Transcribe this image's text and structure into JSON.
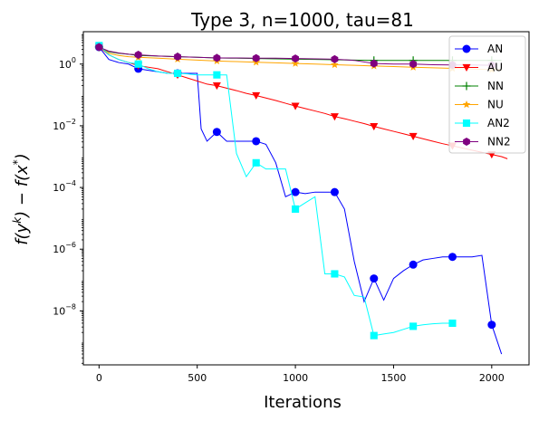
{
  "chart_data": {
    "type": "line",
    "title": "Type 3, n=1000, tau=81",
    "xlabel": "Iterations",
    "ylabel": "f(y^k) − f(x*)",
    "ylabel_parts": {
      "f1": "f(y",
      "sup1": "k",
      "mid": ") − f(x",
      "sup2": "*",
      "end": ")"
    },
    "xlim": [
      -80,
      2190
    ],
    "ylim_log10": [
      -9.75,
      1.05
    ],
    "yscale": "log",
    "xticks": [
      0,
      500,
      1000,
      1500,
      2000
    ],
    "xtick_labels": [
      "0",
      "500",
      "1000",
      "1500",
      "2000"
    ],
    "yticks_exp": [
      0,
      -2,
      -4,
      -6,
      -8
    ],
    "ytick_base": "10",
    "ytick_exp_labels": [
      "0",
      "−2",
      "−4",
      "−6",
      "−8"
    ],
    "legend_placement": "top-right",
    "series": [
      {
        "name": "AN",
        "color": "#0000ff",
        "marker": "circle",
        "x": [
          0,
          50,
          100,
          150,
          200,
          250,
          300,
          350,
          400,
          450,
          500,
          520,
          550,
          600,
          650,
          700,
          750,
          800,
          850,
          900,
          950,
          1000,
          1050,
          1100,
          1150,
          1200,
          1250,
          1300,
          1350,
          1400,
          1450,
          1500,
          1550,
          1600,
          1650,
          1700,
          1750,
          1800,
          1850,
          1900,
          1950,
          2000,
          2050
        ],
        "logy": [
          0.55,
          0.15,
          0.05,
          0.0,
          -0.15,
          -0.2,
          -0.25,
          -0.3,
          -0.3,
          -0.3,
          -0.3,
          -2.1,
          -2.5,
          -2.2,
          -2.5,
          -2.5,
          -2.5,
          -2.5,
          -2.6,
          -3.2,
          -4.3,
          -4.15,
          -4.2,
          -4.15,
          -4.15,
          -4.15,
          -4.7,
          -6.4,
          -7.7,
          -6.95,
          -7.65,
          -6.95,
          -6.7,
          -6.5,
          -6.35,
          -6.3,
          -6.25,
          -6.25,
          -6.25,
          -6.25,
          -6.2,
          -8.45,
          -9.4
        ],
        "markers": [
          0,
          4,
          8,
          13,
          17,
          21,
          25,
          29,
          33,
          37,
          41
        ]
      },
      {
        "name": "AU",
        "color": "#ff0000",
        "marker": "triangle-down",
        "x": [
          0,
          50,
          100,
          150,
          200,
          250,
          300,
          350,
          400,
          450,
          500,
          550,
          600,
          650,
          700,
          750,
          800,
          850,
          900,
          950,
          1000,
          1050,
          1100,
          1150,
          1200,
          1250,
          1300,
          1350,
          1400,
          1450,
          1500,
          1550,
          1600,
          1650,
          1700,
          1750,
          1800,
          1850,
          1900,
          1950,
          2000,
          2050,
          2080
        ],
        "logy": [
          0.55,
          0.3,
          0.15,
          0.05,
          -0.05,
          -0.1,
          -0.15,
          -0.25,
          -0.35,
          -0.45,
          -0.55,
          -0.65,
          -0.7,
          -0.78,
          -0.86,
          -0.95,
          -1.02,
          -1.1,
          -1.18,
          -1.27,
          -1.36,
          -1.44,
          -1.52,
          -1.6,
          -1.7,
          -1.77,
          -1.85,
          -1.93,
          -2.02,
          -2.1,
          -2.18,
          -2.26,
          -2.34,
          -2.42,
          -2.5,
          -2.58,
          -2.65,
          -2.72,
          -2.79,
          -2.86,
          -2.93,
          -3.0,
          -3.07
        ],
        "markers": [
          0,
          4,
          8,
          12,
          16,
          20,
          24,
          28,
          32,
          36,
          40
        ]
      },
      {
        "name": "NN",
        "color": "#008000",
        "marker": "plus",
        "x": [
          0,
          50,
          100,
          150,
          200,
          300,
          400,
          500,
          600,
          700,
          800,
          900,
          1000,
          1100,
          1200,
          1300,
          1400,
          1500,
          1600,
          1700,
          1800,
          1900,
          2000,
          2050
        ],
        "logy": [
          0.55,
          0.4,
          0.35,
          0.32,
          0.28,
          0.26,
          0.24,
          0.22,
          0.2,
          0.19,
          0.18,
          0.17,
          0.16,
          0.15,
          0.14,
          0.13,
          0.12,
          0.12,
          0.12,
          0.12,
          0.12,
          0.12,
          0.12,
          0.12
        ],
        "markers": [
          0,
          4,
          6,
          8,
          10,
          12,
          14,
          16,
          18,
          20,
          22
        ]
      },
      {
        "name": "NU",
        "color": "#ffa500",
        "marker": "star",
        "x": [
          0,
          50,
          100,
          150,
          200,
          300,
          400,
          500,
          600,
          700,
          800,
          900,
          1000,
          1100,
          1200,
          1300,
          1400,
          1500,
          1600,
          1700,
          1800,
          1900,
          2000,
          2050
        ],
        "logy": [
          0.55,
          0.35,
          0.28,
          0.24,
          0.22,
          0.19,
          0.16,
          0.13,
          0.1,
          0.08,
          0.06,
          0.04,
          0.02,
          0.0,
          -0.02,
          -0.04,
          -0.06,
          -0.08,
          -0.1,
          -0.12,
          -0.14,
          -0.16,
          -0.18,
          -0.19
        ],
        "markers": [
          0,
          4,
          6,
          8,
          10,
          12,
          14,
          16,
          18,
          20,
          22
        ]
      },
      {
        "name": "AN2",
        "color": "#00ffff",
        "marker": "square",
        "x": [
          0,
          50,
          100,
          150,
          200,
          250,
          300,
          350,
          400,
          450,
          500,
          550,
          600,
          650,
          700,
          750,
          800,
          850,
          900,
          950,
          1000,
          1050,
          1100,
          1150,
          1200,
          1250,
          1300,
          1350,
          1400,
          1450,
          1500,
          1550,
          1600,
          1650,
          1700,
          1750,
          1800
        ],
        "logy": [
          0.6,
          0.3,
          0.15,
          0.05,
          0.0,
          -0.15,
          -0.25,
          -0.3,
          -0.3,
          -0.32,
          -0.35,
          -0.35,
          -0.35,
          -0.35,
          -2.9,
          -3.65,
          -3.2,
          -3.4,
          -3.4,
          -3.4,
          -4.7,
          -4.5,
          -4.3,
          -6.8,
          -6.8,
          -6.9,
          -7.5,
          -7.55,
          -8.8,
          -8.75,
          -8.7,
          -8.6,
          -8.5,
          -8.45,
          -8.42,
          -8.4,
          -8.4
        ],
        "markers": [
          0,
          4,
          8,
          12,
          16,
          20,
          24,
          28,
          32,
          36
        ]
      },
      {
        "name": "NN2",
        "color": "#800080",
        "marker": "hexagon",
        "x": [
          0,
          50,
          100,
          150,
          200,
          300,
          400,
          500,
          600,
          700,
          800,
          900,
          1000,
          1100,
          1200,
          1300,
          1400,
          1500,
          1600,
          1700,
          1800,
          1900,
          2000
        ],
        "logy": [
          0.55,
          0.42,
          0.36,
          0.32,
          0.3,
          0.26,
          0.24,
          0.22,
          0.2,
          0.2,
          0.19,
          0.19,
          0.18,
          0.17,
          0.16,
          0.12,
          0.02,
          0.0,
          0.0,
          -0.02,
          -0.03,
          -0.03,
          -0.04
        ],
        "markers": [
          0,
          4,
          6,
          8,
          10,
          12,
          14,
          16,
          18,
          20,
          22
        ]
      }
    ]
  }
}
